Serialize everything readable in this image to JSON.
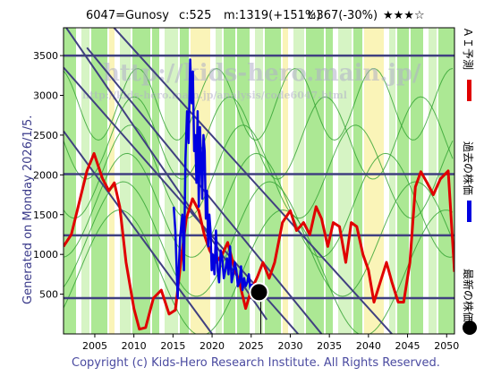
{
  "header": {
    "ticker": "6047=Gunosy",
    "current": "c:525",
    "max": "m:1319(+151%)",
    "target": "t:367(-30%)",
    "stars": "★★★☆"
  },
  "side_label": "Generated on Monday 2026/1/5.",
  "watermark": {
    "line1": "http://kids-hero.main.jp/",
    "line2": "http://kids-hero.main.jp/analysis/code6047.html"
  },
  "footer": "Copyright (c) Kids-Hero Research Institute. All Rights Reserved.",
  "legend": [
    {
      "label": "ＡＩ予測",
      "color": "#e00000"
    },
    {
      "label": "過去の株価",
      "color": "#0000e0"
    },
    {
      "label": "最新の株価",
      "color": "#000000"
    }
  ],
  "colors": {
    "prediction": "#e00000",
    "history": "#0000e0",
    "band": "#90e070",
    "band_light": "#c8f0b0",
    "yellow": "#f8f0a0",
    "wave": "#30a030",
    "trend": "#404080",
    "grid": "#9090a0"
  },
  "chart_data": {
    "type": "line",
    "xlim": [
      2001,
      2051
    ],
    "ylim": [
      0,
      3850
    ],
    "x_ticks": [
      2005,
      2010,
      2015,
      2020,
      2025,
      2030,
      2035,
      2040,
      2045,
      2050
    ],
    "y_ticks": [
      500,
      1000,
      1500,
      2000,
      2500,
      3000,
      3500
    ],
    "x_tick_labels": [
      "2005",
      "2010",
      "2015",
      "2020",
      "2025",
      "2030",
      "2035",
      "2040",
      "2045",
      "2050"
    ],
    "y_tick_labels": [
      "500",
      "1000",
      "1500",
      "2000",
      "2500",
      "3000",
      "3500"
    ],
    "horizontal_levels": [
      450,
      1240,
      2010,
      3500
    ],
    "trend_lines": [
      {
        "x": [
          2001,
          2031
        ],
        "y": [
          3350,
          0
        ]
      },
      {
        "x": [
          2001,
          2027
        ],
        "y": [
          3900,
          180
        ]
      },
      {
        "x": [
          2007,
          2043
        ],
        "y": [
          3900,
          0
        ]
      },
      {
        "x": [
          2004,
          2034
        ],
        "y": [
          3600,
          0
        ]
      },
      {
        "x": [
          2001,
          2020
        ],
        "y": [
          2550,
          0
        ]
      }
    ],
    "latest": {
      "x": 2026.0,
      "y": 525
    },
    "series": [
      {
        "name": "ＡＩ予測",
        "x": [
          2001,
          2002,
          2003,
          2004,
          2004.9,
          2006,
          2006.8,
          2007.5,
          2008.2,
          2009,
          2010,
          2010.7,
          2011.5,
          2012.5,
          2013.5,
          2014.5,
          2015.3,
          2016,
          2016.7,
          2017.5,
          2018.3,
          2019,
          2019.7,
          2020.5,
          2021.3,
          2022,
          2022.8,
          2023.5,
          2024.3,
          2025,
          2025.8,
          2026.5,
          2027.3,
          2028,
          2029,
          2030,
          2030.8,
          2031.7,
          2032.5,
          2033.3,
          2034,
          2034.8,
          2035.5,
          2036.3,
          2037.1,
          2037.8,
          2038.5,
          2039.3,
          2040,
          2040.7,
          2041.5,
          2042.3,
          2043,
          2043.8,
          2044.5,
          2045.3,
          2046,
          2046.7,
          2047.5,
          2048.3,
          2049.2,
          2050.2,
          2051
        ],
        "y": [
          1100,
          1250,
          1650,
          2050,
          2270,
          1950,
          1800,
          1900,
          1600,
          900,
          320,
          60,
          80,
          450,
          550,
          250,
          300,
          900,
          1450,
          1700,
          1550,
          1250,
          1050,
          900,
          1000,
          1150,
          850,
          650,
          320,
          550,
          720,
          900,
          700,
          900,
          1400,
          1550,
          1300,
          1400,
          1250,
          1600,
          1450,
          1100,
          1400,
          1350,
          900,
          1400,
          1350,
          1000,
          800,
          400,
          650,
          900,
          650,
          400,
          400,
          900,
          1850,
          2040,
          1900,
          1750,
          1950,
          2050,
          780
        ]
      },
      {
        "name": "過去の株価",
        "x": [
          2015.1,
          2015.3,
          2015.6,
          2015.9,
          2016.2,
          2016.4,
          2016.6,
          2016.8,
          2017.0,
          2017.2,
          2017.4,
          2017.55,
          2017.7,
          2017.85,
          2018.0,
          2018.15,
          2018.3,
          2018.45,
          2018.6,
          2018.75,
          2018.9,
          2019.05,
          2019.2,
          2019.35,
          2019.5,
          2019.65,
          2019.8,
          2019.95,
          2020.1,
          2020.3,
          2020.5,
          2020.7,
          2020.9,
          2021.1,
          2021.3,
          2021.5,
          2021.7,
          2021.9,
          2022.1,
          2022.3,
          2022.5,
          2022.7,
          2022.9,
          2023.1,
          2023.3,
          2023.5,
          2023.7,
          2023.9,
          2024.1,
          2024.3,
          2024.5,
          2024.7,
          2024.9,
          2025.1,
          2025.3,
          2025.5,
          2025.7,
          2025.9
        ],
        "y": [
          1600,
          1300,
          450,
          1200,
          1500,
          800,
          2200,
          2800,
          2400,
          3450,
          2900,
          3300,
          2300,
          2500,
          1900,
          2800,
          1600,
          2600,
          2200,
          1700,
          2500,
          2300,
          1450,
          1800,
          1100,
          1500,
          1300,
          800,
          1000,
          750,
          1300,
          800,
          650,
          1050,
          950,
          700,
          800,
          950,
          750,
          1100,
          650,
          750,
          900,
          800,
          600,
          650,
          850,
          550,
          700,
          600,
          650,
          750,
          550,
          620,
          600,
          550,
          520,
          525
        ]
      }
    ]
  }
}
